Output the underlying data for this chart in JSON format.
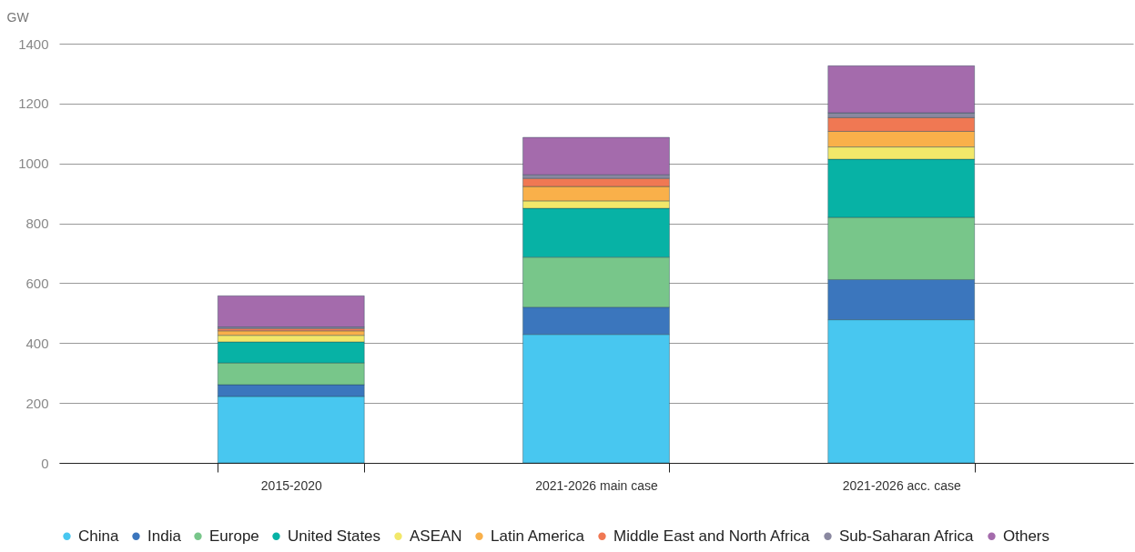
{
  "chart_data": {
    "type": "bar",
    "stacked": true,
    "ylabel": "GW",
    "categories": [
      "2015-2020",
      "2021-2026 main case",
      "2021-2026 acc. case"
    ],
    "series": [
      {
        "name": "China",
        "color": "#48c7f0",
        "values": [
          222,
          429,
          478
        ]
      },
      {
        "name": "India",
        "color": "#3b76bd",
        "values": [
          39,
          91,
          134
        ]
      },
      {
        "name": "Europe",
        "color": "#78c68a",
        "values": [
          73,
          167,
          208
        ]
      },
      {
        "name": "United States",
        "color": "#07b2a5",
        "values": [
          70,
          163,
          194
        ]
      },
      {
        "name": "ASEAN",
        "color": "#f2e86a",
        "values": [
          22,
          25,
          41
        ]
      },
      {
        "name": "Latin America",
        "color": "#f9b04a",
        "values": [
          15,
          48,
          52
        ]
      },
      {
        "name": "Middle East and North Africa",
        "color": "#f07853",
        "values": [
          8,
          27,
          46
        ]
      },
      {
        "name": "Sub-Saharan Africa",
        "color": "#8a88a0",
        "values": [
          5,
          12,
          16
        ]
      },
      {
        "name": "Others",
        "color": "#a46bac",
        "values": [
          104,
          125,
          157
        ]
      }
    ],
    "ylim": [
      0,
      1400
    ],
    "yticks": [
      0,
      200,
      400,
      600,
      800,
      1000,
      1200,
      1400
    ],
    "grid": "y",
    "legend": "bottom"
  }
}
